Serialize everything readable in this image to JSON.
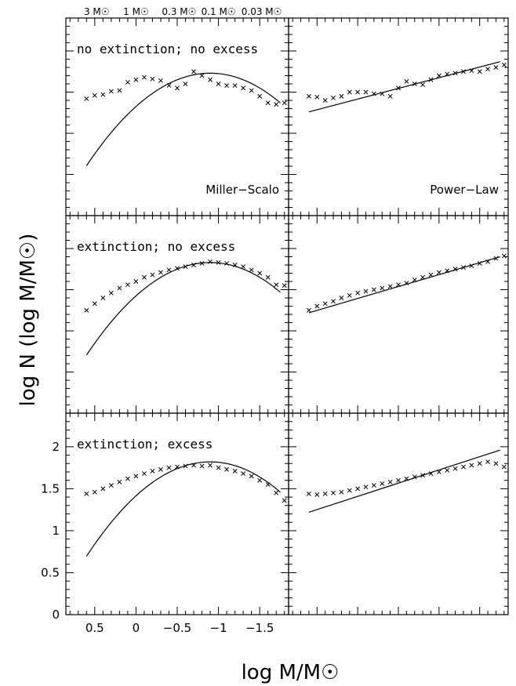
{
  "figure": {
    "ylabel": "log N (log M/M☉)",
    "xlabel": "log M/M☉",
    "top_mass_labels": [
      "3 M☉",
      "1 M☉",
      "0.3 M☉",
      "0.1 M☉",
      "0.03 M☉"
    ],
    "top_mass_logvalues": [
      0.477,
      0,
      -0.523,
      -1,
      -1.523
    ],
    "x_ticks": [
      0.5,
      0,
      -0.5,
      -1,
      -1.5
    ],
    "x_tick_labels": [
      "0.5",
      "0",
      "−0.5",
      "−1",
      "−1.5"
    ],
    "y_ticks": [
      0,
      0.5,
      1,
      1.5,
      2
    ],
    "y_tick_labels": [
      "0",
      "0.5",
      "1",
      "1.5",
      "2"
    ],
    "colors": {
      "ink": "#000000",
      "background": "#ffffff"
    }
  },
  "chart_data": [
    {
      "type": "scatter",
      "row": 0,
      "col": 0,
      "panel_label": "no extinction; no excess",
      "corner_label": "Miller−Scalo",
      "xlim": [
        0.85,
        -1.85
      ],
      "ylim": [
        0,
        2.4
      ],
      "grid": false,
      "points_x": [
        0.6,
        0.5,
        0.4,
        0.3,
        0.2,
        0.1,
        0.0,
        -0.1,
        -0.2,
        -0.3,
        -0.4,
        -0.5,
        -0.6,
        -0.7,
        -0.8,
        -0.9,
        -1.0,
        -1.1,
        -1.2,
        -1.3,
        -1.4,
        -1.5,
        -1.6,
        -1.7,
        -1.8
      ],
      "points_y": [
        1.42,
        1.46,
        1.47,
        1.51,
        1.52,
        1.62,
        1.65,
        1.68,
        1.66,
        1.64,
        1.58,
        1.55,
        1.6,
        1.75,
        1.7,
        1.65,
        1.6,
        1.58,
        1.58,
        1.55,
        1.52,
        1.45,
        1.37,
        1.35,
        1.37
      ],
      "curve_type": "parabola",
      "curve_peak_x": -0.9,
      "curve_peak_y": 1.73,
      "curve_k": 0.5,
      "curve_x_range": [
        0.6,
        -1.75
      ]
    },
    {
      "type": "scatter",
      "row": 0,
      "col": 1,
      "panel_label": "",
      "corner_label": "Power−Law",
      "xlim": [
        0.85,
        -1.85
      ],
      "ylim": [
        0,
        2.4
      ],
      "grid": false,
      "points_x": [
        0.6,
        0.5,
        0.4,
        0.3,
        0.2,
        0.1,
        0.0,
        -0.1,
        -0.2,
        -0.3,
        -0.4,
        -0.5,
        -0.6,
        -0.7,
        -0.8,
        -0.9,
        -1.0,
        -1.1,
        -1.2,
        -1.3,
        -1.4,
        -1.5,
        -1.6,
        -1.7,
        -1.8
      ],
      "points_y": [
        1.45,
        1.44,
        1.4,
        1.43,
        1.45,
        1.5,
        1.5,
        1.5,
        1.48,
        1.48,
        1.45,
        1.55,
        1.63,
        1.6,
        1.59,
        1.65,
        1.7,
        1.72,
        1.73,
        1.75,
        1.76,
        1.75,
        1.78,
        1.8,
        1.83
      ],
      "curve_type": "line",
      "line_x": [
        0.6,
        -1.75
      ],
      "line_y": [
        1.26,
        1.87
      ]
    },
    {
      "type": "scatter",
      "row": 1,
      "col": 0,
      "panel_label": "extinction; no excess",
      "corner_label": "",
      "xlim": [
        0.85,
        -1.85
      ],
      "ylim": [
        0,
        2.4
      ],
      "grid": false,
      "points_x": [
        0.6,
        0.5,
        0.4,
        0.3,
        0.2,
        0.1,
        0.0,
        -0.1,
        -0.2,
        -0.3,
        -0.4,
        -0.5,
        -0.6,
        -0.7,
        -0.8,
        -0.9,
        -1.0,
        -1.1,
        -1.2,
        -1.3,
        -1.4,
        -1.5,
        -1.6,
        -1.7,
        -1.8
      ],
      "points_y": [
        1.25,
        1.33,
        1.4,
        1.46,
        1.52,
        1.56,
        1.6,
        1.65,
        1.68,
        1.71,
        1.74,
        1.76,
        1.78,
        1.8,
        1.82,
        1.84,
        1.83,
        1.82,
        1.8,
        1.78,
        1.74,
        1.7,
        1.65,
        1.56,
        1.55
      ],
      "curve_type": "parabola",
      "curve_peak_x": -0.9,
      "curve_peak_y": 1.83,
      "curve_k": 0.5,
      "curve_x_range": [
        0.6,
        -1.75
      ]
    },
    {
      "type": "scatter",
      "row": 1,
      "col": 1,
      "panel_label": "",
      "corner_label": "",
      "xlim": [
        0.85,
        -1.85
      ],
      "ylim": [
        0,
        2.4
      ],
      "grid": false,
      "points_x": [
        0.6,
        0.5,
        0.4,
        0.3,
        0.2,
        0.1,
        0.0,
        -0.1,
        -0.2,
        -0.3,
        -0.4,
        -0.5,
        -0.6,
        -0.7,
        -0.8,
        -0.9,
        -1.0,
        -1.1,
        -1.2,
        -1.3,
        -1.4,
        -1.5,
        -1.6,
        -1.7,
        -1.8
      ],
      "points_y": [
        1.25,
        1.3,
        1.33,
        1.36,
        1.4,
        1.43,
        1.46,
        1.48,
        1.5,
        1.52,
        1.54,
        1.56,
        1.58,
        1.62,
        1.65,
        1.68,
        1.71,
        1.73,
        1.75,
        1.77,
        1.79,
        1.82,
        1.84,
        1.88,
        1.91
      ],
      "curve_type": "line",
      "line_x": [
        0.6,
        -1.75
      ],
      "line_y": [
        1.22,
        1.9
      ]
    },
    {
      "type": "scatter",
      "row": 2,
      "col": 0,
      "panel_label": "extinction; excess",
      "corner_label": "",
      "xlim": [
        0.85,
        -1.85
      ],
      "ylim": [
        0,
        2.4
      ],
      "grid": false,
      "points_x": [
        0.6,
        0.5,
        0.4,
        0.3,
        0.2,
        0.1,
        0.0,
        -0.1,
        -0.2,
        -0.3,
        -0.4,
        -0.5,
        -0.6,
        -0.7,
        -0.8,
        -0.9,
        -1.0,
        -1.1,
        -1.2,
        -1.3,
        -1.4,
        -1.5,
        -1.6,
        -1.7,
        -1.8
      ],
      "points_y": [
        1.44,
        1.46,
        1.5,
        1.54,
        1.58,
        1.62,
        1.65,
        1.68,
        1.71,
        1.73,
        1.75,
        1.76,
        1.77,
        1.78,
        1.77,
        1.78,
        1.75,
        1.73,
        1.71,
        1.68,
        1.65,
        1.6,
        1.55,
        1.45,
        1.36
      ],
      "curve_type": "parabola",
      "curve_peak_x": -0.9,
      "curve_peak_y": 1.82,
      "curve_k": 0.5,
      "curve_x_range": [
        0.6,
        -1.75
      ]
    },
    {
      "type": "scatter",
      "row": 2,
      "col": 1,
      "panel_label": "",
      "corner_label": "",
      "xlim": [
        0.85,
        -1.85
      ],
      "ylim": [
        0,
        2.4
      ],
      "grid": false,
      "points_x": [
        0.6,
        0.5,
        0.4,
        0.3,
        0.2,
        0.1,
        0.0,
        -0.1,
        -0.2,
        -0.3,
        -0.4,
        -0.5,
        -0.6,
        -0.7,
        -0.8,
        -0.9,
        -1.0,
        -1.1,
        -1.2,
        -1.3,
        -1.4,
        -1.5,
        -1.6,
        -1.7,
        -1.8
      ],
      "points_y": [
        1.44,
        1.43,
        1.44,
        1.45,
        1.46,
        1.48,
        1.5,
        1.52,
        1.54,
        1.56,
        1.58,
        1.6,
        1.62,
        1.64,
        1.66,
        1.68,
        1.7,
        1.72,
        1.74,
        1.76,
        1.78,
        1.8,
        1.82,
        1.8,
        1.76
      ],
      "curve_type": "line",
      "line_x": [
        0.6,
        -1.75
      ],
      "line_y": [
        1.22,
        1.96
      ]
    }
  ]
}
